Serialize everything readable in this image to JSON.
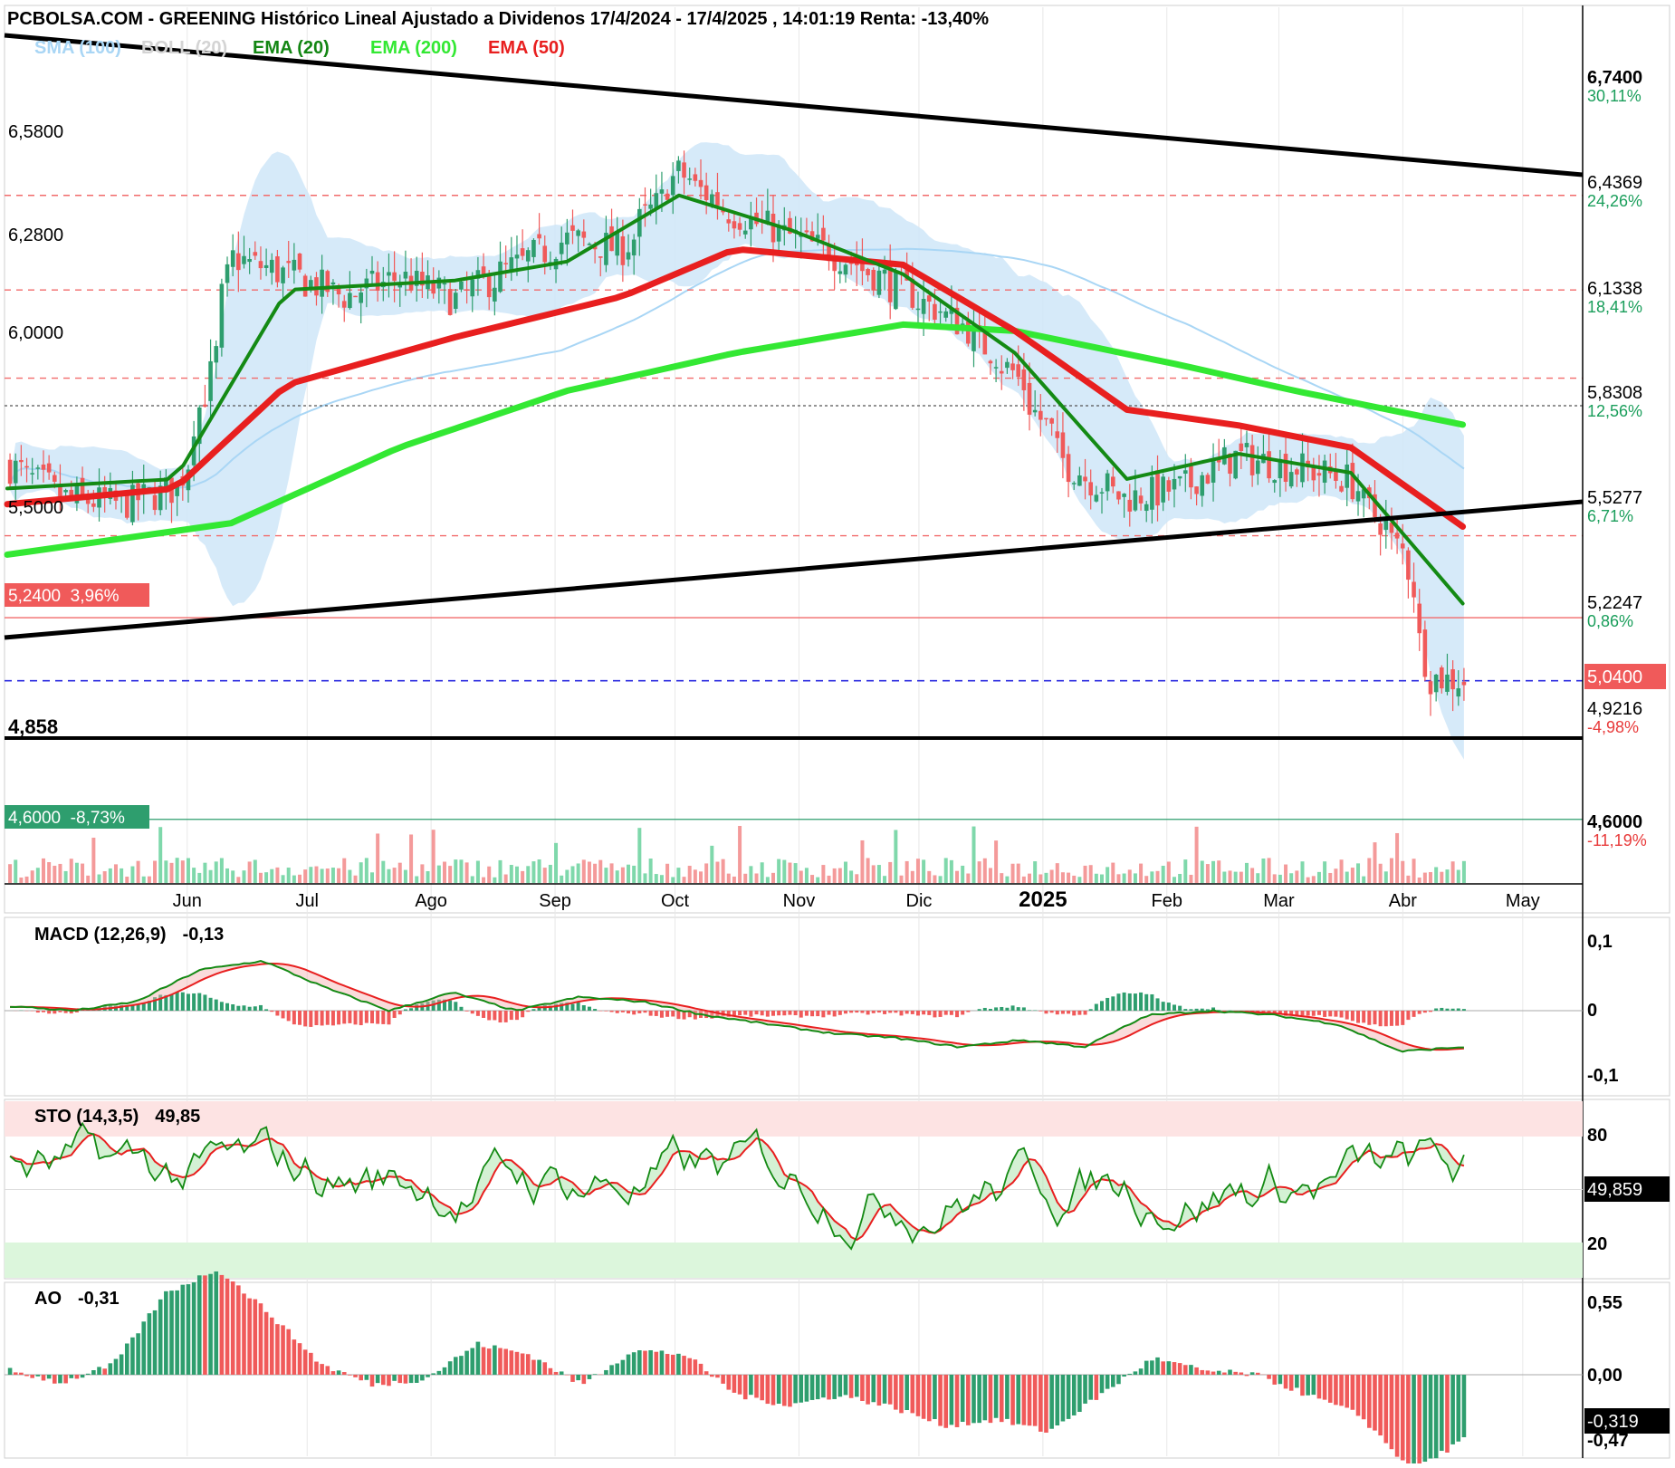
{
  "header": {
    "title": "PCBOLSA.COM - GREENING Histórico Lineal Ajustado a Dividenos 17/4/2024 - 17/4/2025 , 14:01:19 Renta: -13,40%"
  },
  "legend": [
    {
      "label": "SMA (100)",
      "color": "#a9d6f5"
    },
    {
      "label": "BOLL (20)",
      "color": "#d4d4d4"
    },
    {
      "label": "EMA (20)",
      "color": "#138613"
    },
    {
      "label": "EMA (200)",
      "color": "#33e833"
    },
    {
      "label": "EMA (50)",
      "color": "#e81f1f"
    }
  ],
  "colors": {
    "up": "#2e9e6e",
    "down": "#f05a5a",
    "ema20": "#148a14",
    "ema200": "#33e833",
    "ema50": "#e81f1f",
    "boll": "#cfe6f8",
    "sma100": "#a9d6f5"
  },
  "price_axis": {
    "ticks": [
      {
        "price": "6,7400",
        "pct": "30,11%",
        "pct_color": "#1a9e5b"
      },
      {
        "price": "6,4369",
        "pct": "24,26%",
        "pct_color": "#1a9e5b"
      },
      {
        "price": "6,1338",
        "pct": "18,41%",
        "pct_color": "#1a9e5b"
      },
      {
        "price": "5,8308",
        "pct": "12,56%",
        "pct_color": "#1a9e5b"
      },
      {
        "price": "5,5277",
        "pct": "6,71%",
        "pct_color": "#1a9e5b"
      },
      {
        "price": "5,2247",
        "pct": "0,86%",
        "pct_color": "#1a9e5b"
      },
      {
        "price": "4,9216",
        "pct": "-4,98%",
        "pct_color": "#e83a3a"
      },
      {
        "price": "4,6000",
        "pct": "-11,19%",
        "pct_color": "#e83a3a"
      }
    ],
    "current_price": "5,0400"
  },
  "level_labels_left": [
    "6,5800",
    "6,2800",
    "6,0000",
    "5,5000",
    "4,858"
  ],
  "boxed_levels": [
    {
      "text": "5,2400  3,96%",
      "color": "#f05a5a"
    },
    {
      "text": "4,6000  -8,73%",
      "color": "#2e9e6e"
    }
  ],
  "time_axis": [
    "Jun",
    "Jul",
    "Ago",
    "Sep",
    "Oct",
    "Nov",
    "Dic",
    "2025",
    "Feb",
    "Mar",
    "Abr",
    "May"
  ],
  "macd": {
    "label": "MACD (12,26,9)",
    "value": "-0,13",
    "ticks": [
      "0,1",
      "0",
      "-0,1"
    ]
  },
  "sto": {
    "label": "STO (14,3,5)",
    "value": "49,85",
    "ticks": [
      "80",
      "20"
    ],
    "current": "49,859"
  },
  "ao": {
    "label": "AO",
    "value": "-0,31",
    "ticks": [
      "0,55",
      "0,00",
      "-0,47"
    ],
    "current": "-0,319"
  },
  "chart_data": {
    "type": "candlestick",
    "title": "GREENING Histórico Lineal Ajustado a Dividenos 17/4/2024 - 17/4/2025",
    "x_categories": [
      "Jun",
      "Jul",
      "Ago",
      "Sep",
      "Oct",
      "Nov",
      "Dic",
      "2025",
      "Feb",
      "Mar",
      "Abr",
      "May"
    ],
    "ylim": [
      4.45,
      6.8
    ],
    "close_path": [
      [
        "2024-04-17",
        5.72
      ],
      [
        "2024-05-01",
        5.62
      ],
      [
        "2024-05-15",
        5.6
      ],
      [
        "2024-05-29",
        5.65
      ],
      [
        "2024-06-05",
        5.95
      ],
      [
        "2024-06-12",
        6.38
      ],
      [
        "2024-06-26",
        6.33
      ],
      [
        "2024-07-10",
        6.26
      ],
      [
        "2024-07-24",
        6.32
      ],
      [
        "2024-08-07",
        6.25
      ],
      [
        "2024-08-21",
        6.35
      ],
      [
        "2024-09-04",
        6.44
      ],
      [
        "2024-09-18",
        6.41
      ],
      [
        "2024-10-02",
        6.65
      ],
      [
        "2024-10-16",
        6.52
      ],
      [
        "2024-10-30",
        6.45
      ],
      [
        "2024-11-13",
        6.38
      ],
      [
        "2024-11-27",
        6.28
      ],
      [
        "2024-12-11",
        6.18
      ],
      [
        "2024-12-25",
        6.02
      ],
      [
        "2025-01-08",
        5.72
      ],
      [
        "2025-01-22",
        5.62
      ],
      [
        "2025-02-05",
        5.65
      ],
      [
        "2025-02-19",
        5.75
      ],
      [
        "2025-03-05",
        5.72
      ],
      [
        "2025-03-19",
        5.68
      ],
      [
        "2025-04-02",
        5.45
      ],
      [
        "2025-04-09",
        5.05
      ],
      [
        "2025-04-17",
        5.04
      ]
    ],
    "levels": [
      6.58,
      6.28,
      6.0,
      5.5,
      5.24,
      5.04,
      4.858,
      4.6
    ],
    "ema200_path": [
      [
        "2024-04-17",
        5.44
      ],
      [
        "2024-06-12",
        5.54
      ],
      [
        "2024-07-24",
        5.78
      ],
      [
        "2024-09-04",
        5.96
      ],
      [
        "2024-10-16",
        6.08
      ],
      [
        "2024-11-27",
        6.17
      ],
      [
        "2024-12-25",
        6.15
      ],
      [
        "2025-02-05",
        6.04
      ],
      [
        "2025-03-05",
        5.96
      ],
      [
        "2025-04-17",
        5.85
      ]
    ],
    "ema50_path": [
      [
        "2024-04-17",
        5.6
      ],
      [
        "2024-05-29",
        5.65
      ],
      [
        "2024-06-26",
        5.98
      ],
      [
        "2024-08-07",
        6.13
      ],
      [
        "2024-09-18",
        6.26
      ],
      [
        "2024-10-16",
        6.41
      ],
      [
        "2024-11-27",
        6.36
      ],
      [
        "2024-12-25",
        6.15
      ],
      [
        "2025-01-22",
        5.9
      ],
      [
        "2025-02-19",
        5.85
      ],
      [
        "2025-03-19",
        5.78
      ],
      [
        "2025-04-17",
        5.52
      ]
    ],
    "ema20_path": [
      [
        "2024-04-17",
        5.65
      ],
      [
        "2024-05-29",
        5.68
      ],
      [
        "2024-06-26",
        6.28
      ],
      [
        "2024-08-07",
        6.31
      ],
      [
        "2024-09-04",
        6.37
      ],
      [
        "2024-10-02",
        6.58
      ],
      [
        "2024-10-30",
        6.47
      ],
      [
        "2024-11-27",
        6.33
      ],
      [
        "2024-12-25",
        6.08
      ],
      [
        "2025-01-22",
        5.68
      ],
      [
        "2025-02-19",
        5.76
      ],
      [
        "2025-03-19",
        5.7
      ],
      [
        "2025-04-17",
        5.27
      ]
    ]
  }
}
